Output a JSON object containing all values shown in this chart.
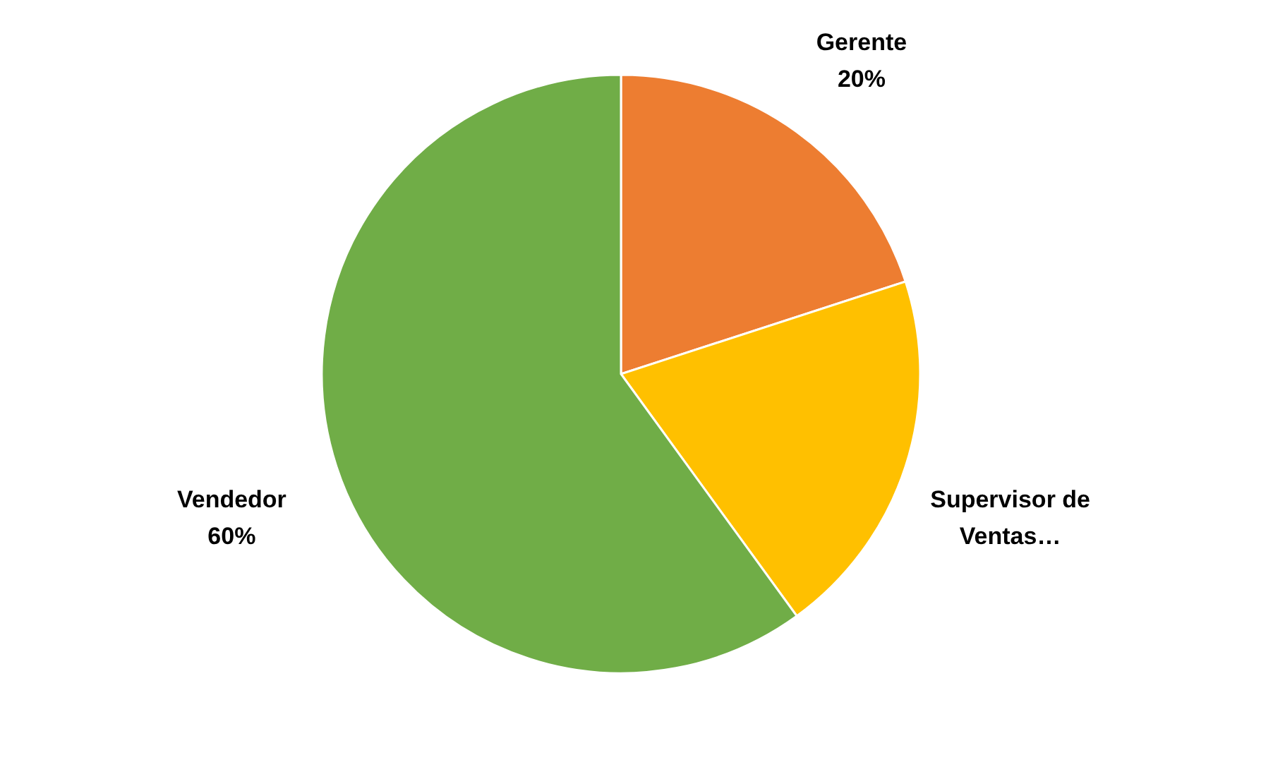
{
  "chart_data": {
    "type": "pie",
    "categories": [
      "Gerente",
      "Supervisor de Ventas…",
      "Vendedor"
    ],
    "values": [
      20,
      20,
      60
    ],
    "colors": [
      "#ed7d31",
      "#ffc000",
      "#70ad47"
    ],
    "value_labels": [
      "20%",
      null,
      "60%"
    ],
    "legend": false
  }
}
